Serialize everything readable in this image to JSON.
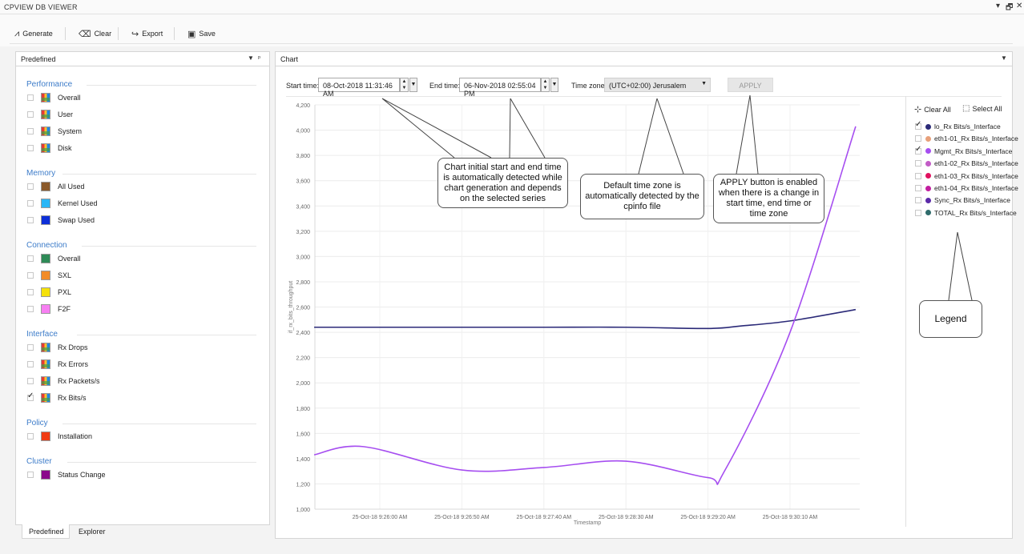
{
  "window": {
    "title": "CPVIEW DB VIEWER",
    "pin": "▾",
    "restore": "🗗",
    "close": "✕"
  },
  "toolbar": {
    "generate": "Generate",
    "clear": "Clear",
    "export": "Export",
    "save": "Save"
  },
  "sidebar": {
    "title": "Predefined",
    "groups": [
      {
        "title": "Performance",
        "items": [
          {
            "label": "Overall",
            "checked": false,
            "color": "multi"
          },
          {
            "label": "User",
            "checked": false,
            "color": "multi"
          },
          {
            "label": "System",
            "checked": false,
            "color": "multi"
          },
          {
            "label": "Disk",
            "checked": false,
            "color": "multi"
          }
        ]
      },
      {
        "title": "Memory",
        "items": [
          {
            "label": "All Used",
            "checked": false,
            "color": "#8b5a2b"
          },
          {
            "label": "Kernel Used",
            "checked": false,
            "color": "#29b6f6"
          },
          {
            "label": "Swap Used",
            "checked": false,
            "color": "#0d2fd8"
          }
        ]
      },
      {
        "title": "Connection",
        "items": [
          {
            "label": "Overall",
            "checked": false,
            "color": "#2e8b57"
          },
          {
            "label": "SXL",
            "checked": false,
            "color": "#f28c28"
          },
          {
            "label": "PXL",
            "checked": false,
            "color": "#f5e10a"
          },
          {
            "label": "F2F",
            "checked": false,
            "color": "#f77ff2"
          }
        ]
      },
      {
        "title": "Interface",
        "items": [
          {
            "label": "Rx Drops",
            "checked": false,
            "color": "multi"
          },
          {
            "label": "Rx Errors",
            "checked": false,
            "color": "multi"
          },
          {
            "label": "Rx Packets/s",
            "checked": false,
            "color": "multi"
          },
          {
            "label": "Rx Bits/s",
            "checked": true,
            "color": "multi"
          }
        ]
      },
      {
        "title": "Policy",
        "items": [
          {
            "label": "Installation",
            "checked": false,
            "color": "#f03c14"
          }
        ]
      },
      {
        "title": "Cluster",
        "items": [
          {
            "label": "Status Change",
            "checked": false,
            "color": "#8b0a8b"
          }
        ]
      }
    ],
    "tabs": [
      "Predefined",
      "Explorer"
    ]
  },
  "chart_panel": {
    "title": "Chart",
    "start_label": "Start time:",
    "start_value": "08-Oct-2018 11:31:46 AM",
    "end_label": "End time:",
    "end_value": "06-Nov-2018 02:55:04 PM",
    "tz_label": "Time zone:",
    "tz_value": "(UTC+02:00) Jerusalem",
    "apply": "APPLY"
  },
  "legend": {
    "clear_all": "Clear All",
    "select_all": "Select All",
    "items": [
      {
        "label": "lo_Rx Bits/s_Interface",
        "checked": true,
        "color": "#2b2a78"
      },
      {
        "label": "eth1-01_Rx Bits/s_Interface",
        "checked": false,
        "color": "#e8a07a"
      },
      {
        "label": "Mgmt_Rx Bits/s_Interface",
        "checked": true,
        "color": "#a64ef0"
      },
      {
        "label": "eth1-02_Rx Bits/s_Interface",
        "checked": false,
        "color": "#c25bc6"
      },
      {
        "label": "eth1-03_Rx Bits/s_Interface",
        "checked": false,
        "color": "#e0115f"
      },
      {
        "label": "eth1-04_Rx Bits/s_Interface",
        "checked": false,
        "color": "#c21ea0"
      },
      {
        "label": "Sync_Rx Bits/s_Interface",
        "checked": false,
        "color": "#5b2aa8"
      },
      {
        "label": "TOTAL_Rx Bits/s_Interface",
        "checked": false,
        "color": "#2f6b6b"
      }
    ]
  },
  "callouts": {
    "time": "Chart initial start and end time is automatically detected while chart generation and depends on the selected series",
    "tz": "Default time zone is automatically detected by the cpinfo file",
    "apply": "APPLY  button is enabled when there is a change in start time, end time or time zone",
    "legend": "Legend"
  },
  "chart_data": {
    "type": "line",
    "xlabel": "Timestamp",
    "ylabel": "if_rx_bits_throughput",
    "ylim": [
      1000,
      4200
    ],
    "yticks": [
      "4,200",
      "4,000",
      "3,800",
      "3,600",
      "3,400",
      "3,200",
      "3,000",
      "2,800",
      "2,600",
      "2,400",
      "2,200",
      "2,000",
      "1,800",
      "1,600",
      "1,400",
      "1,200",
      "1,000"
    ],
    "xticks": [
      "25-Oct-18 9:26:00 AM",
      "25-Oct-18 9:26:50 AM",
      "25-Oct-18 9:27:40 AM",
      "25-Oct-18 9:28:30 AM",
      "25-Oct-18 9:29:20 AM",
      "25-Oct-18 9:30:10 AM"
    ],
    "grid": true,
    "series": [
      {
        "name": "lo_Rx Bits/s_Interface",
        "color": "#2b2a78",
        "x": [
          "25-Oct-18 9:25:20 AM",
          "25-Oct-18 9:26:00 AM",
          "25-Oct-18 9:26:50 AM",
          "25-Oct-18 9:27:40 AM",
          "25-Oct-18 9:28:30 AM",
          "25-Oct-18 9:29:20 AM",
          "25-Oct-18 9:29:40 AM",
          "25-Oct-18 9:30:10 AM",
          "25-Oct-18 9:30:50 AM"
        ],
        "values": [
          2440,
          2440,
          2440,
          2440,
          2440,
          2430,
          2450,
          2490,
          2580
        ]
      },
      {
        "name": "Mgmt_Rx Bits/s_Interface",
        "color": "#a64ef0",
        "x": [
          "25-Oct-18 9:25:20 AM",
          "25-Oct-18 9:25:50 AM",
          "25-Oct-18 9:26:50 AM",
          "25-Oct-18 9:27:40 AM",
          "25-Oct-18 9:28:30 AM",
          "25-Oct-18 9:29:20 AM",
          "25-Oct-18 9:29:30 AM",
          "25-Oct-18 9:30:10 AM",
          "25-Oct-18 9:30:50 AM"
        ],
        "values": [
          1430,
          1495,
          1310,
          1330,
          1380,
          1250,
          1300,
          2400,
          4030
        ]
      }
    ]
  }
}
